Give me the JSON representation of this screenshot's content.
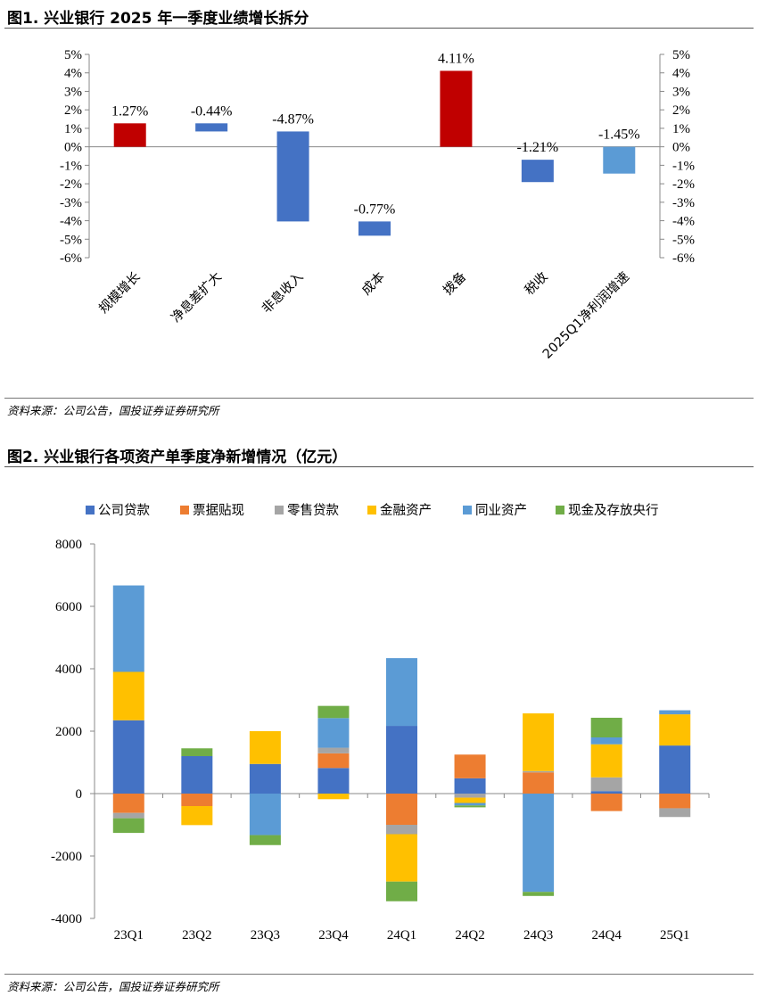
{
  "figures": [
    {
      "title": "图1. 兴业银行 2025 年一季度业绩增长拆分",
      "source": "资料来源：公司公告，国投证券证券研究所"
    },
    {
      "title": "图2. 兴业银行各项资产单季度净新增情况（亿元）",
      "source": "资料来源：公司公告，国投证券证券研究所"
    }
  ],
  "chart_data": [
    {
      "type": "bar",
      "subtype": "waterfall",
      "title": "图1. 兴业银行 2025 年一季度业绩增长拆分",
      "categories": [
        "规模增长",
        "净息差扩大",
        "非息收入",
        "成本",
        "拨备",
        "税收",
        "2025Q1净利润增速"
      ],
      "values": [
        1.27,
        -0.44,
        -4.87,
        -0.77,
        4.11,
        -1.21,
        -1.45
      ],
      "value_labels": [
        "1.27%",
        "-0.44%",
        "-4.87%",
        "-0.77%",
        "4.11%",
        "-1.21%",
        "-1.45%"
      ],
      "bar_ranges": [
        [
          0,
          1.27
        ],
        [
          0.83,
          1.27
        ],
        [
          -4.04,
          0.83
        ],
        [
          -4.81,
          -4.04
        ],
        [
          0,
          4.11
        ],
        [
          -1.91,
          -0.7
        ],
        [
          -1.45,
          0
        ]
      ],
      "colors": [
        "#C00000",
        "#4472C4",
        "#4472C4",
        "#4472C4",
        "#C00000",
        "#4472C4",
        "#5B9BD5"
      ],
      "ylim": [
        -6,
        5
      ],
      "yticks": [
        "5%",
        "4%",
        "3%",
        "2%",
        "1%",
        "0%",
        "-1%",
        "-2%",
        "-3%",
        "-4%",
        "-5%",
        "-6%"
      ],
      "secondary_yaxis": true,
      "grid": false,
      "legend": false
    },
    {
      "type": "bar",
      "subtype": "stacked",
      "title": "图2. 兴业银行各项资产单季度净新增情况（亿元）",
      "categories": [
        "23Q1",
        "23Q2",
        "23Q3",
        "23Q4",
        "24Q1",
        "24Q2",
        "24Q3",
        "24Q4",
        "25Q1"
      ],
      "series": [
        {
          "name": "公司贷款",
          "color": "#4472C4",
          "values": [
            2350,
            1200,
            950,
            820,
            2170,
            490,
            0,
            80,
            1540
          ]
        },
        {
          "name": "票据贴现",
          "color": "#ED7D31",
          "values": [
            -620,
            -400,
            0,
            470,
            -1000,
            760,
            680,
            -560,
            -470
          ]
        },
        {
          "name": "零售贷款",
          "color": "#A5A5A5",
          "values": [
            -170,
            0,
            0,
            180,
            -300,
            -130,
            40,
            440,
            -280
          ]
        },
        {
          "name": "金融资产",
          "color": "#FFC000",
          "values": [
            1550,
            -610,
            1050,
            -180,
            -1520,
            -170,
            1850,
            1060,
            1000
          ]
        },
        {
          "name": "同业资产",
          "color": "#5B9BD5",
          "values": [
            2770,
            0,
            -1330,
            950,
            2170,
            -80,
            -3150,
            220,
            130
          ]
        },
        {
          "name": "现金及存放央行",
          "color": "#70AD47",
          "values": [
            -470,
            250,
            -320,
            390,
            -630,
            -60,
            -130,
            630,
            0
          ]
        }
      ],
      "ylim": [
        -4000,
        8000
      ],
      "yticks": [
        8000,
        6000,
        4000,
        2000,
        0,
        -2000,
        -4000
      ],
      "legend_position": "top",
      "grid": false
    }
  ]
}
